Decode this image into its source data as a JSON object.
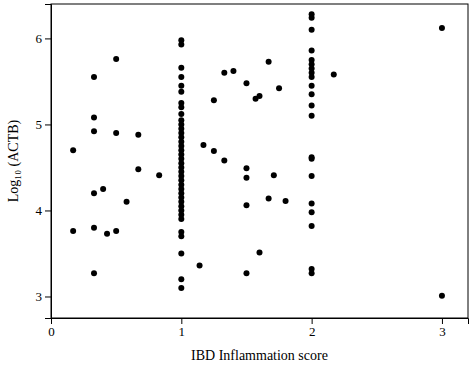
{
  "chart_data": {
    "type": "scatter",
    "x_label": "IBD Inflammation score",
    "y_label": "Log₁₀ (ACTB)",
    "color": "#000000",
    "marker": "circle",
    "xlim": [
      0,
      3.2
    ],
    "xticks": [
      0,
      1,
      2,
      3
    ],
    "ylim": [
      2.75,
      6.4
    ],
    "yticks": [
      3,
      4,
      5,
      6
    ],
    "x": [
      0.17,
      0.17,
      0.33,
      0.33,
      0.33,
      0.33,
      0.33,
      0.33,
      0.4,
      0.43,
      0.5,
      0.5,
      0.5,
      0.58,
      0.67,
      0.67,
      0.83,
      1,
      1,
      1,
      1,
      1,
      1,
      1,
      1,
      1,
      1,
      1,
      1,
      1,
      1,
      1,
      1,
      1,
      1,
      1,
      1,
      1,
      1,
      1,
      1,
      1,
      1,
      1,
      1,
      1,
      1,
      1,
      1,
      1,
      1,
      1,
      1,
      1,
      1,
      1.14,
      1.17,
      1.25,
      1.25,
      1.33,
      1.33,
      1.4,
      1.5,
      1.5,
      1.5,
      1.5,
      1.5,
      1.57,
      1.6,
      1.6,
      1.67,
      1.67,
      1.71,
      1.75,
      1.8,
      2,
      2,
      2,
      2,
      2,
      2,
      2,
      2,
      2,
      2,
      2,
      2,
      2,
      2,
      2,
      2,
      2,
      2,
      2,
      2,
      2,
      2.17,
      3,
      3
    ],
    "values": [
      4.7,
      3.76,
      5.55,
      5.08,
      4.92,
      4.2,
      3.8,
      3.27,
      4.25,
      3.73,
      5.76,
      4.9,
      3.76,
      4.1,
      4.88,
      4.48,
      4.41,
      5.98,
      5.93,
      5.66,
      5.55,
      5.45,
      5.38,
      5.25,
      5.2,
      5.12,
      5.05,
      5.0,
      4.95,
      4.9,
      4.85,
      4.8,
      4.75,
      4.7,
      4.65,
      4.6,
      4.55,
      4.5,
      4.45,
      4.4,
      4.35,
      4.3,
      4.25,
      4.2,
      4.15,
      4.1,
      4.05,
      4.0,
      3.95,
      3.9,
      3.75,
      3.7,
      3.5,
      3.2,
      3.1,
      3.36,
      4.76,
      5.28,
      4.69,
      5.6,
      4.58,
      5.62,
      5.48,
      4.49,
      4.38,
      4.06,
      3.27,
      5.3,
      5.33,
      3.51,
      5.73,
      4.14,
      4.41,
      5.42,
      4.11,
      6.28,
      6.24,
      6.1,
      5.86,
      5.75,
      5.7,
      5.65,
      5.6,
      5.55,
      5.45,
      5.35,
      5.22,
      5.1,
      4.62,
      4.6,
      4.4,
      4.08,
      3.98,
      3.82,
      3.32,
      3.27,
      5.58,
      6.12,
      3.01
    ]
  }
}
